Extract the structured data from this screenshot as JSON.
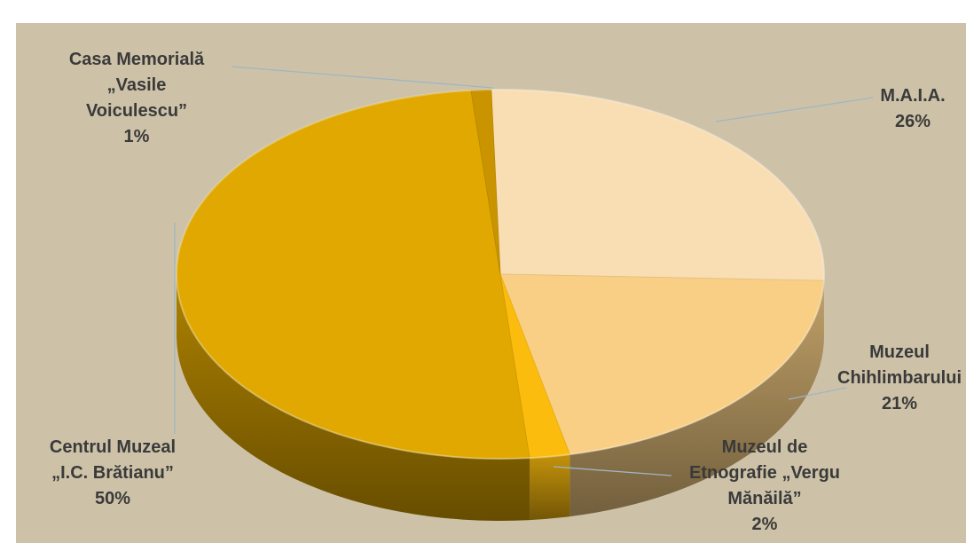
{
  "chart_data": {
    "type": "pie",
    "style": "3d",
    "title": "",
    "slices": [
      {
        "label_lines": [
          "M.A.I.A.",
          "26%"
        ],
        "value": 26,
        "color": "#f9ddb3"
      },
      {
        "label_lines": [
          "Muzeul",
          "Chihlimbarului",
          "21%"
        ],
        "value": 21,
        "color": "#f8cf85"
      },
      {
        "label_lines": [
          "Muzeul de",
          "Etnografie „Vergu",
          "Mănăilă”",
          "2%"
        ],
        "value": 2,
        "color": "#fbbc0e"
      },
      {
        "label_lines": [
          "Centrul Muzeal",
          "„I.C. Brătianu”",
          "50%"
        ],
        "value": 50,
        "color": "#e0a800"
      },
      {
        "label_lines": [
          "Casa Memorială",
          "„Vasile",
          "Voiculescu”",
          "1%"
        ],
        "value": 1,
        "color": "#c99400"
      }
    ],
    "background": "#cdc2a8",
    "leader_line_color": "#9fb5c4"
  }
}
